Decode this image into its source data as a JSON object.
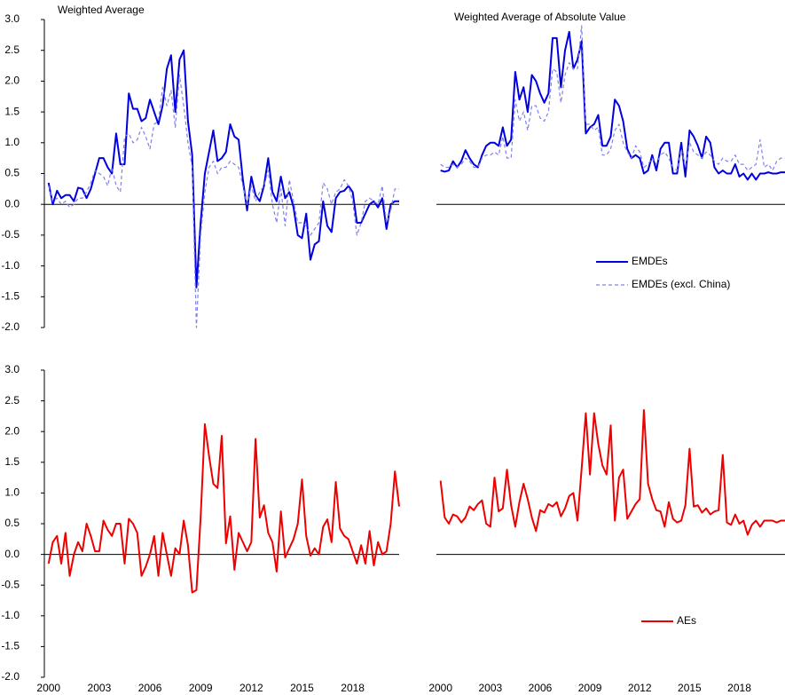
{
  "chart_data": [
    {
      "type": "line",
      "title": "Weighted Average",
      "x": [
        2000,
        2000.25,
        2000.5,
        2000.75,
        2001,
        2001.25,
        2001.5,
        2001.75,
        2002,
        2002.25,
        2002.5,
        2002.75,
        2003,
        2003.25,
        2003.5,
        2003.75,
        2004,
        2004.25,
        2004.5,
        2004.75,
        2005,
        2005.25,
        2005.5,
        2005.75,
        2006,
        2006.25,
        2006.5,
        2006.75,
        2007,
        2007.25,
        2007.5,
        2007.75,
        2008,
        2008.25,
        2008.5,
        2008.75,
        2009,
        2009.25,
        2009.5,
        2009.75,
        2010,
        2010.25,
        2010.5,
        2010.75,
        2011,
        2011.25,
        2011.5,
        2011.75,
        2012,
        2012.25,
        2012.5,
        2012.75,
        2013,
        2013.25,
        2013.5,
        2013.75,
        2014,
        2014.25,
        2014.5,
        2014.75,
        2015,
        2015.25,
        2015.5,
        2015.75,
        2016,
        2016.25,
        2016.5,
        2016.75,
        2017,
        2017.25,
        2017.5,
        2017.75,
        2018,
        2018.25,
        2018.5,
        2018.75,
        2019,
        2019.25,
        2019.5,
        2019.75,
        2020,
        2020.25,
        2020.5,
        2020.75
      ],
      "xlim": [
        1999.75,
        2020.75
      ],
      "ylim": [
        -2,
        3
      ],
      "yticks": [
        {
          "value": 3,
          "label": "3.0"
        },
        {
          "value": 2.5,
          "label": "2.5"
        },
        {
          "value": 2,
          "label": "2.0"
        },
        {
          "value": 1.5,
          "label": "1.5"
        },
        {
          "value": 1,
          "label": "1.0"
        },
        {
          "value": 0.5,
          "label": "0.5"
        },
        {
          "value": 0,
          "label": "0.0"
        },
        {
          "value": -0.5,
          "label": "-0.5"
        },
        {
          "value": -1,
          "label": "-1.0"
        },
        {
          "value": -1.5,
          "label": "-1.5"
        },
        {
          "value": -2,
          "label": "-2.0"
        }
      ],
      "series": [
        {
          "name": "EMDEs",
          "color": "#0000dd",
          "line_style": "solid",
          "values": [
            0.35,
            0.0,
            0.22,
            0.1,
            0.15,
            0.15,
            0.05,
            0.27,
            0.25,
            0.1,
            0.25,
            0.5,
            0.75,
            0.75,
            0.6,
            0.5,
            1.15,
            0.65,
            0.65,
            1.8,
            1.55,
            1.55,
            1.35,
            1.4,
            1.7,
            1.5,
            1.3,
            1.6,
            2.2,
            2.42,
            1.5,
            2.35,
            2.5,
            1.35,
            0.8,
            -1.35,
            -0.3,
            0.5,
            0.85,
            1.2,
            0.7,
            0.75,
            0.85,
            1.3,
            1.1,
            1.05,
            0.4,
            -0.1,
            0.45,
            0.15,
            0.05,
            0.3,
            0.75,
            0.2,
            0.05,
            0.45,
            0.1,
            0.2,
            -0.05,
            -0.5,
            -0.55,
            -0.15,
            -0.9,
            -0.65,
            -0.6,
            0.05,
            -0.35,
            -0.45,
            0.1,
            0.2,
            0.22,
            0.3,
            0.2,
            -0.3,
            -0.3,
            -0.15,
            0.0,
            0.05,
            -0.05,
            0.1,
            -0.4,
            0.0,
            0.05,
            0.05
          ]
        },
        {
          "name": "EMDEs (excl. China)",
          "color": "#8080ee",
          "line_style": "dashed",
          "values": [
            0.3,
            0.05,
            0.1,
            0.0,
            0.05,
            -0.05,
            0.0,
            0.1,
            0.1,
            0.2,
            0.35,
            0.55,
            0.5,
            0.45,
            0.3,
            0.6,
            0.3,
            0.2,
            1.1,
            1.15,
            1.0,
            1.05,
            1.25,
            1.1,
            0.9,
            1.3,
            1.35,
            1.9,
            1.6,
            1.85,
            1.25,
            2.1,
            1.6,
            1.0,
            0.6,
            -2.0,
            -0.5,
            0.2,
            0.6,
            0.7,
            0.5,
            0.6,
            0.6,
            0.7,
            0.65,
            0.6,
            0.3,
            0.0,
            0.3,
            0.05,
            0.2,
            0.3,
            0.55,
            0.0,
            -0.3,
            0.25,
            -0.35,
            0.4,
            0.05,
            -0.3,
            -0.3,
            -0.35,
            -0.5,
            -0.4,
            -0.3,
            0.35,
            0.25,
            0.0,
            0.2,
            0.25,
            0.4,
            0.3,
            0.05,
            -0.5,
            -0.3,
            0.05,
            0.1,
            0.05,
            0.0,
            0.3,
            -0.3,
            -0.1,
            0.25,
            0.25
          ]
        }
      ]
    },
    {
      "type": "line",
      "title": "Weighted Average of Absolute Value",
      "x": [
        2000,
        2000.25,
        2000.5,
        2000.75,
        2001,
        2001.25,
        2001.5,
        2001.75,
        2002,
        2002.25,
        2002.5,
        2002.75,
        2003,
        2003.25,
        2003.5,
        2003.75,
        2004,
        2004.25,
        2004.5,
        2004.75,
        2005,
        2005.25,
        2005.5,
        2005.75,
        2006,
        2006.25,
        2006.5,
        2006.75,
        2007,
        2007.25,
        2007.5,
        2007.75,
        2008,
        2008.25,
        2008.5,
        2008.75,
        2009,
        2009.25,
        2009.5,
        2009.75,
        2010,
        2010.25,
        2010.5,
        2010.75,
        2011,
        2011.25,
        2011.5,
        2011.75,
        2012,
        2012.25,
        2012.5,
        2012.75,
        2013,
        2013.25,
        2013.5,
        2013.75,
        2014,
        2014.25,
        2014.5,
        2014.75,
        2015,
        2015.25,
        2015.5,
        2015.75,
        2016,
        2016.25,
        2016.5,
        2016.75,
        2017,
        2017.25,
        2017.5,
        2017.75,
        2018,
        2018.25,
        2018.5,
        2018.75,
        2019,
        2019.25,
        2019.5,
        2019.75,
        2020,
        2020.25,
        2020.5,
        2020.75
      ],
      "xlim": [
        1999.75,
        2020.75
      ],
      "ylim": [
        -2,
        3
      ],
      "legend": "right",
      "series": [
        {
          "name": "EMDEs",
          "color": "#0000dd",
          "line_style": "solid",
          "values": [
            0.55,
            0.53,
            0.55,
            0.7,
            0.6,
            0.7,
            0.88,
            0.75,
            0.65,
            0.6,
            0.8,
            0.95,
            1.0,
            1.0,
            0.95,
            1.25,
            0.95,
            1.05,
            2.15,
            1.7,
            1.9,
            1.5,
            2.1,
            2.0,
            1.8,
            1.65,
            1.8,
            2.7,
            2.7,
            1.9,
            2.5,
            2.8,
            2.2,
            2.35,
            2.65,
            1.15,
            1.25,
            1.3,
            1.45,
            0.95,
            0.95,
            1.1,
            1.7,
            1.6,
            1.35,
            0.9,
            0.75,
            0.8,
            0.75,
            0.5,
            0.55,
            0.8,
            0.55,
            0.9,
            1.0,
            1.0,
            0.5,
            0.5,
            1.0,
            0.45,
            1.2,
            1.1,
            0.95,
            0.75,
            1.1,
            1.0,
            0.6,
            0.5,
            0.55,
            0.5,
            0.5,
            0.65,
            0.45,
            0.5,
            0.4,
            0.5,
            0.4,
            0.5,
            0.5,
            0.52,
            0.5,
            0.5,
            0.52,
            0.52
          ]
        },
        {
          "name": "EMDEs (excl. China)",
          "color": "#8080ee",
          "line_style": "dashed",
          "values": [
            0.65,
            0.6,
            0.6,
            0.65,
            0.6,
            0.65,
            0.75,
            0.7,
            0.6,
            0.6,
            0.75,
            0.8,
            0.8,
            0.85,
            0.8,
            1.1,
            0.75,
            0.75,
            1.7,
            1.35,
            1.5,
            1.2,
            1.6,
            1.6,
            1.4,
            1.35,
            1.5,
            2.2,
            2.15,
            1.65,
            2.1,
            2.3,
            2.2,
            2.2,
            2.9,
            1.3,
            1.3,
            1.2,
            1.25,
            0.8,
            0.8,
            0.9,
            1.2,
            1.3,
            1.0,
            0.85,
            0.75,
            0.95,
            0.85,
            0.6,
            0.65,
            0.75,
            0.65,
            0.8,
            0.85,
            0.75,
            0.6,
            0.55,
            0.9,
            0.6,
            1.0,
            0.85,
            0.8,
            0.75,
            0.85,
            0.8,
            0.7,
            0.65,
            0.75,
            0.7,
            0.7,
            0.8,
            0.65,
            0.65,
            0.55,
            0.6,
            0.65,
            1.05,
            0.6,
            0.65,
            0.55,
            0.7,
            0.75,
            0.75
          ]
        }
      ]
    },
    {
      "type": "line",
      "x": [
        2000,
        2000.25,
        2000.5,
        2000.75,
        2001,
        2001.25,
        2001.5,
        2001.75,
        2002,
        2002.25,
        2002.5,
        2002.75,
        2003,
        2003.25,
        2003.5,
        2003.75,
        2004,
        2004.25,
        2004.5,
        2004.75,
        2005,
        2005.25,
        2005.5,
        2005.75,
        2006,
        2006.25,
        2006.5,
        2006.75,
        2007,
        2007.25,
        2007.5,
        2007.75,
        2008,
        2008.25,
        2008.5,
        2008.75,
        2009,
        2009.25,
        2009.5,
        2009.75,
        2010,
        2010.25,
        2010.5,
        2010.75,
        2011,
        2011.25,
        2011.5,
        2011.75,
        2012,
        2012.25,
        2012.5,
        2012.75,
        2013,
        2013.25,
        2013.5,
        2013.75,
        2014,
        2014.25,
        2014.5,
        2014.75,
        2015,
        2015.25,
        2015.5,
        2015.75,
        2016,
        2016.25,
        2016.5,
        2016.75,
        2017,
        2017.25,
        2017.5,
        2017.75,
        2018,
        2018.25,
        2018.5,
        2018.75,
        2019,
        2019.25,
        2019.5,
        2019.75,
        2020,
        2020.25,
        2020.5,
        2020.75
      ],
      "xlim": [
        1999.75,
        2020.75
      ],
      "ylim": [
        -2,
        3
      ],
      "xticks": [
        2000,
        2003,
        2006,
        2009,
        2012,
        2015,
        2018
      ],
      "yticks": [
        {
          "value": 3,
          "label": "3.0"
        },
        {
          "value": 2.5,
          "label": "2.5"
        },
        {
          "value": 2,
          "label": "2.0"
        },
        {
          "value": 1.5,
          "label": "1.5"
        },
        {
          "value": 1,
          "label": "1.0"
        },
        {
          "value": 0.5,
          "label": "0.5"
        },
        {
          "value": 0,
          "label": "0.0"
        },
        {
          "value": -0.5,
          "label": "-0.5"
        },
        {
          "value": -1,
          "label": "-1.0"
        },
        {
          "value": -1.5,
          "label": "-1.5"
        },
        {
          "value": -2,
          "label": "-2.0"
        }
      ],
      "series": [
        {
          "name": "AEs",
          "color": "#ee0000",
          "line_style": "solid",
          "values": [
            -0.15,
            0.2,
            0.3,
            -0.15,
            0.35,
            -0.35,
            0.0,
            0.2,
            0.05,
            0.5,
            0.3,
            0.05,
            0.05,
            0.55,
            0.4,
            0.3,
            0.5,
            0.5,
            -0.15,
            0.58,
            0.5,
            0.35,
            -0.35,
            -0.2,
            0.0,
            0.3,
            -0.35,
            0.35,
            0.0,
            -0.35,
            0.1,
            0.0,
            0.55,
            0.15,
            -0.62,
            -0.58,
            0.6,
            2.12,
            1.6,
            1.15,
            1.08,
            1.93,
            0.18,
            0.62,
            -0.25,
            0.35,
            0.2,
            0.05,
            0.2,
            1.88,
            0.6,
            0.8,
            0.35,
            0.2,
            -0.28,
            0.7,
            -0.05,
            0.1,
            0.25,
            0.5,
            1.22,
            0.3,
            -0.02,
            0.1,
            0.0,
            0.45,
            0.57,
            0.2,
            1.18,
            0.42,
            0.3,
            0.25,
            0.05,
            -0.15,
            0.15,
            -0.15,
            0.38,
            -0.18,
            0.2,
            0.0,
            0.05,
            0.5,
            1.35,
            0.78
          ]
        }
      ]
    },
    {
      "type": "line",
      "x": [
        2000,
        2000.25,
        2000.5,
        2000.75,
        2001,
        2001.25,
        2001.5,
        2001.75,
        2002,
        2002.25,
        2002.5,
        2002.75,
        2003,
        2003.25,
        2003.5,
        2003.75,
        2004,
        2004.25,
        2004.5,
        2004.75,
        2005,
        2005.25,
        2005.5,
        2005.75,
        2006,
        2006.25,
        2006.5,
        2006.75,
        2007,
        2007.25,
        2007.5,
        2007.75,
        2008,
        2008.25,
        2008.5,
        2008.75,
        2009,
        2009.25,
        2009.5,
        2009.75,
        2010,
        2010.25,
        2010.5,
        2010.75,
        2011,
        2011.25,
        2011.5,
        2011.75,
        2012,
        2012.25,
        2012.5,
        2012.75,
        2013,
        2013.25,
        2013.5,
        2013.75,
        2014,
        2014.25,
        2014.5,
        2014.75,
        2015,
        2015.25,
        2015.5,
        2015.75,
        2016,
        2016.25,
        2016.5,
        2016.75,
        2017,
        2017.25,
        2017.5,
        2017.75,
        2018,
        2018.25,
        2018.5,
        2018.75,
        2019,
        2019.25,
        2019.5,
        2019.75,
        2020,
        2020.25,
        2020.5,
        2020.75
      ],
      "xlim": [
        1999.75,
        2020.75
      ],
      "ylim": [
        -2,
        3
      ],
      "legend": "right",
      "xticks": [
        2000,
        2003,
        2006,
        2009,
        2012,
        2015,
        2018
      ],
      "series": [
        {
          "name": "AEs",
          "color": "#ee0000",
          "line_style": "solid",
          "values": [
            1.2,
            0.6,
            0.5,
            0.65,
            0.62,
            0.52,
            0.6,
            0.78,
            0.72,
            0.82,
            0.88,
            0.5,
            0.45,
            1.25,
            0.7,
            0.75,
            1.38,
            0.8,
            0.45,
            0.85,
            1.15,
            0.9,
            0.6,
            0.38,
            0.72,
            0.68,
            0.82,
            0.78,
            0.85,
            0.62,
            0.75,
            0.95,
            1.0,
            0.55,
            1.4,
            2.3,
            1.3,
            2.3,
            1.8,
            1.45,
            1.3,
            2.1,
            0.55,
            1.25,
            1.38,
            0.58,
            0.7,
            0.82,
            0.9,
            2.35,
            1.15,
            0.9,
            0.72,
            0.7,
            0.45,
            0.85,
            0.58,
            0.52,
            0.55,
            0.8,
            1.72,
            0.78,
            0.8,
            0.68,
            0.75,
            0.65,
            0.7,
            0.72,
            1.62,
            0.52,
            0.48,
            0.65,
            0.5,
            0.55,
            0.32,
            0.48,
            0.55,
            0.45,
            0.55,
            0.55,
            0.55,
            0.52,
            0.55,
            0.55
          ]
        }
      ]
    }
  ]
}
